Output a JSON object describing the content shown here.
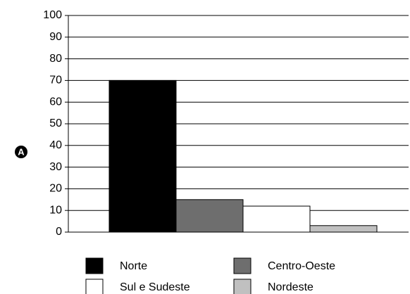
{
  "chart_data": {
    "type": "bar",
    "annotation": "A",
    "categories": [
      null
    ],
    "series": [
      {
        "name": "Norte",
        "color": "#000000",
        "values": [
          70
        ]
      },
      {
        "name": "Centro-Oeste",
        "color": "#6e6e6e",
        "values": [
          15
        ]
      },
      {
        "name": "Sul e Sudeste",
        "color": "#ffffff",
        "values": [
          12
        ]
      },
      {
        "name": "Nordeste",
        "color": "#c0c0c0",
        "values": [
          3
        ]
      }
    ],
    "ylim": [
      0,
      100
    ],
    "yticks": [
      0,
      10,
      20,
      30,
      40,
      50,
      60,
      70,
      80,
      90,
      100
    ],
    "grid": true
  }
}
